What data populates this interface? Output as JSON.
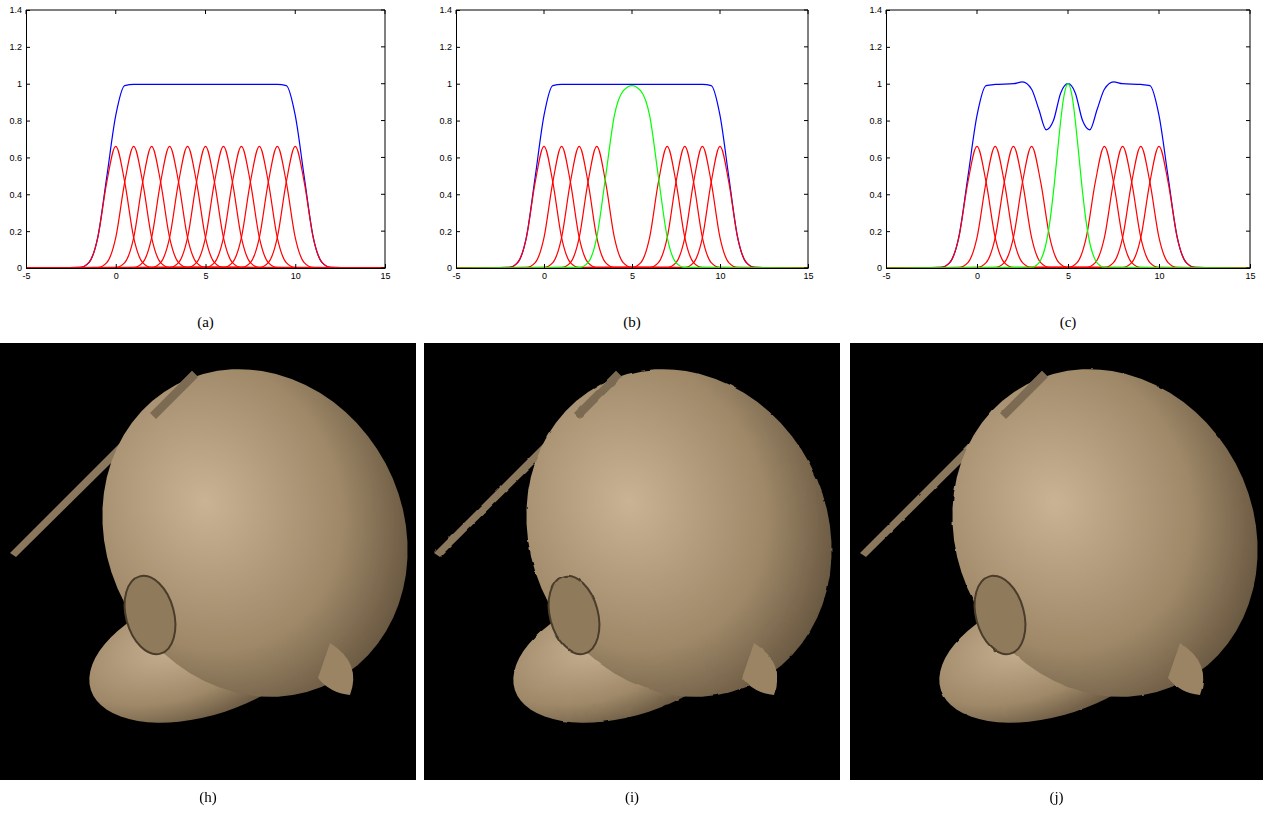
{
  "chart_data": [
    {
      "type": "line",
      "label": "(a)",
      "xlim": [
        -5,
        15
      ],
      "ylim": [
        0,
        1.4
      ],
      "xticks": [
        -5,
        0,
        5,
        10,
        15
      ],
      "yticks": [
        0,
        0.2,
        0.4,
        0.6,
        0.8,
        1,
        1.2,
        1.4
      ],
      "series": [
        {
          "color": "#0000ff",
          "x": [
            -5,
            -2,
            -1.5,
            -1,
            -0.5,
            0,
            0.5,
            1,
            9,
            9.5,
            10,
            10.5,
            11,
            11.5,
            12,
            15
          ],
          "values": [
            0,
            0.003,
            0.029,
            0.168,
            0.495,
            0.828,
            0.99,
            0.996,
            0.996,
            0.99,
            0.828,
            0.495,
            0.168,
            0.029,
            0.003,
            0
          ]
        },
        {
          "color": "#ff0000",
          "x": [
            -5,
            -2,
            -1.5,
            -1,
            -0.5,
            0,
            0.5,
            1,
            1.5,
            2,
            15
          ],
          "values": [
            0,
            0.003,
            0.029,
            0.165,
            0.466,
            0.66,
            0.466,
            0.165,
            0.029,
            0.003,
            0
          ]
        },
        {
          "color": "#ff0000",
          "x": [
            -5,
            -1,
            -0.5,
            0,
            0.5,
            1,
            1.5,
            2,
            2.5,
            3,
            15
          ],
          "values": [
            0,
            0.003,
            0.029,
            0.165,
            0.466,
            0.66,
            0.466,
            0.165,
            0.029,
            0.003,
            0
          ]
        },
        {
          "color": "#ff0000",
          "x": [
            -5,
            0,
            0.5,
            1,
            1.5,
            2,
            2.5,
            3,
            3.5,
            4,
            15
          ],
          "values": [
            0,
            0.003,
            0.029,
            0.165,
            0.466,
            0.66,
            0.466,
            0.165,
            0.029,
            0.003,
            0
          ]
        },
        {
          "color": "#ff0000",
          "x": [
            -5,
            1,
            1.5,
            2,
            2.5,
            3,
            3.5,
            4,
            4.5,
            5,
            15
          ],
          "values": [
            0,
            0.003,
            0.029,
            0.165,
            0.466,
            0.66,
            0.466,
            0.165,
            0.029,
            0.003,
            0
          ]
        },
        {
          "color": "#ff0000",
          "x": [
            -5,
            2,
            2.5,
            3,
            3.5,
            4,
            4.5,
            5,
            5.5,
            6,
            15
          ],
          "values": [
            0,
            0.003,
            0.029,
            0.165,
            0.466,
            0.66,
            0.466,
            0.165,
            0.029,
            0.003,
            0
          ]
        },
        {
          "color": "#ff0000",
          "x": [
            -5,
            3,
            3.5,
            4,
            4.5,
            5,
            5.5,
            6,
            6.5,
            7,
            15
          ],
          "values": [
            0,
            0.003,
            0.029,
            0.165,
            0.466,
            0.66,
            0.466,
            0.165,
            0.029,
            0.003,
            0
          ]
        },
        {
          "color": "#ff0000",
          "x": [
            -5,
            4,
            4.5,
            5,
            5.5,
            6,
            6.5,
            7,
            7.5,
            8,
            15
          ],
          "values": [
            0,
            0.003,
            0.029,
            0.165,
            0.466,
            0.66,
            0.466,
            0.165,
            0.029,
            0.003,
            0
          ]
        },
        {
          "color": "#ff0000",
          "x": [
            -5,
            5,
            5.5,
            6,
            6.5,
            7,
            7.5,
            8,
            8.5,
            9,
            15
          ],
          "values": [
            0,
            0.003,
            0.029,
            0.165,
            0.466,
            0.66,
            0.466,
            0.165,
            0.029,
            0.003,
            0
          ]
        },
        {
          "color": "#ff0000",
          "x": [
            -5,
            6,
            6.5,
            7,
            7.5,
            8,
            8.5,
            9,
            9.5,
            10,
            15
          ],
          "values": [
            0,
            0.003,
            0.029,
            0.165,
            0.466,
            0.66,
            0.466,
            0.165,
            0.029,
            0.003,
            0
          ]
        },
        {
          "color": "#ff0000",
          "x": [
            -5,
            7,
            7.5,
            8,
            8.5,
            9,
            9.5,
            10,
            10.5,
            11,
            15
          ],
          "values": [
            0,
            0.003,
            0.029,
            0.165,
            0.466,
            0.66,
            0.466,
            0.165,
            0.029,
            0.003,
            0
          ]
        },
        {
          "color": "#ff0000",
          "x": [
            -5,
            8,
            8.5,
            9,
            9.5,
            10,
            10.5,
            11,
            11.5,
            12,
            15
          ],
          "values": [
            0,
            0.003,
            0.029,
            0.165,
            0.466,
            0.66,
            0.466,
            0.165,
            0.029,
            0.003,
            0
          ]
        }
      ]
    },
    {
      "type": "line",
      "label": "(b)",
      "xlim": [
        -5,
        15
      ],
      "ylim": [
        0,
        1.4
      ],
      "xticks": [
        -5,
        0,
        5,
        10,
        15
      ],
      "yticks": [
        0,
        0.2,
        0.4,
        0.6,
        0.8,
        1,
        1.2,
        1.4
      ],
      "series": [
        {
          "color": "#0000ff",
          "x": [
            -5,
            -2,
            -1.5,
            -1,
            -0.5,
            0,
            0.5,
            1,
            9,
            9.5,
            10,
            10.5,
            11,
            11.5,
            12,
            15
          ],
          "values": [
            0,
            0.003,
            0.029,
            0.168,
            0.495,
            0.828,
            0.99,
            0.996,
            0.996,
            0.99,
            0.828,
            0.495,
            0.168,
            0.029,
            0.003,
            0
          ]
        },
        {
          "color": "#ff0000",
          "x": [
            -5,
            -2,
            -1.5,
            -1,
            -0.5,
            0,
            0.5,
            1,
            1.5,
            2,
            15
          ],
          "values": [
            0,
            0.003,
            0.029,
            0.165,
            0.466,
            0.66,
            0.466,
            0.165,
            0.029,
            0.003,
            0
          ]
        },
        {
          "color": "#ff0000",
          "x": [
            -5,
            -1,
            -0.5,
            0,
            0.5,
            1,
            1.5,
            2,
            2.5,
            3,
            15
          ],
          "values": [
            0,
            0.003,
            0.029,
            0.165,
            0.466,
            0.66,
            0.466,
            0.165,
            0.029,
            0.003,
            0
          ]
        },
        {
          "color": "#ff0000",
          "x": [
            -5,
            0,
            0.5,
            1,
            1.5,
            2,
            2.5,
            3,
            3.5,
            4,
            15
          ],
          "values": [
            0,
            0.003,
            0.029,
            0.165,
            0.466,
            0.66,
            0.466,
            0.165,
            0.029,
            0.003,
            0
          ]
        },
        {
          "color": "#ff0000",
          "x": [
            -5,
            1,
            1.5,
            2,
            2.5,
            3,
            3.5,
            4,
            4.5,
            5,
            15
          ],
          "values": [
            0,
            0.003,
            0.029,
            0.165,
            0.466,
            0.66,
            0.466,
            0.165,
            0.029,
            0.003,
            0
          ]
        },
        {
          "color": "#ff0000",
          "x": [
            -5,
            5,
            5.5,
            6,
            6.5,
            7,
            7.5,
            8,
            8.5,
            9,
            15
          ],
          "values": [
            0,
            0.003,
            0.029,
            0.165,
            0.466,
            0.66,
            0.466,
            0.165,
            0.029,
            0.003,
            0
          ]
        },
        {
          "color": "#ff0000",
          "x": [
            -5,
            6,
            6.5,
            7,
            7.5,
            8,
            8.5,
            9,
            9.5,
            10,
            15
          ],
          "values": [
            0,
            0.003,
            0.029,
            0.165,
            0.466,
            0.66,
            0.466,
            0.165,
            0.029,
            0.003,
            0
          ]
        },
        {
          "color": "#ff0000",
          "x": [
            -5,
            7,
            7.5,
            8,
            8.5,
            9,
            9.5,
            10,
            10.5,
            11,
            15
          ],
          "values": [
            0,
            0.003,
            0.029,
            0.165,
            0.466,
            0.66,
            0.466,
            0.165,
            0.029,
            0.003,
            0
          ]
        },
        {
          "color": "#ff0000",
          "x": [
            -5,
            8,
            8.5,
            9,
            9.5,
            10,
            10.5,
            11,
            11.5,
            12,
            15
          ],
          "values": [
            0,
            0.003,
            0.029,
            0.165,
            0.466,
            0.66,
            0.466,
            0.165,
            0.029,
            0.003,
            0
          ]
        },
        {
          "color": "#00ff00",
          "x": [
            -5,
            2,
            2.5,
            3,
            3.5,
            4,
            4.5,
            5,
            5.5,
            6,
            6.5,
            7,
            7.5,
            8,
            15
          ],
          "values": [
            0,
            0.003,
            0.029,
            0.168,
            0.495,
            0.828,
            0.961,
            0.99,
            0.961,
            0.828,
            0.495,
            0.168,
            0.029,
            0.003,
            0
          ]
        }
      ]
    },
    {
      "type": "line",
      "label": "(c)",
      "xlim": [
        -5,
        15
      ],
      "ylim": [
        0,
        1.4
      ],
      "xticks": [
        -5,
        0,
        5,
        10,
        15
      ],
      "yticks": [
        0,
        0.2,
        0.4,
        0.6,
        0.8,
        1,
        1.2,
        1.4
      ],
      "series": [
        {
          "color": "#0000ff",
          "x": [
            -5,
            -2,
            -1.5,
            -1,
            -0.5,
            0,
            0.5,
            1,
            2,
            2.5,
            3,
            3.4,
            3.8,
            4.2,
            4.6,
            5,
            5.4,
            5.8,
            6.2,
            6.6,
            7,
            7.5,
            8,
            9,
            9.5,
            10,
            10.5,
            11,
            11.5,
            12,
            15
          ],
          "values": [
            0,
            0.003,
            0.029,
            0.168,
            0.495,
            0.828,
            0.99,
            0.996,
            1.0,
            1.01,
            0.97,
            0.86,
            0.75,
            0.8,
            0.95,
            1.0,
            0.95,
            0.8,
            0.75,
            0.86,
            0.97,
            1.01,
            1.0,
            0.996,
            0.99,
            0.828,
            0.495,
            0.168,
            0.029,
            0.003,
            0
          ]
        },
        {
          "color": "#ff0000",
          "x": [
            -5,
            -2,
            -1.5,
            -1,
            -0.5,
            0,
            0.5,
            1,
            1.5,
            2,
            15
          ],
          "values": [
            0,
            0.003,
            0.029,
            0.165,
            0.466,
            0.66,
            0.466,
            0.165,
            0.029,
            0.003,
            0
          ]
        },
        {
          "color": "#ff0000",
          "x": [
            -5,
            -1,
            -0.5,
            0,
            0.5,
            1,
            1.5,
            2,
            2.5,
            3,
            15
          ],
          "values": [
            0,
            0.003,
            0.029,
            0.165,
            0.466,
            0.66,
            0.466,
            0.165,
            0.029,
            0.003,
            0
          ]
        },
        {
          "color": "#ff0000",
          "x": [
            -5,
            0,
            0.5,
            1,
            1.5,
            2,
            2.5,
            3,
            3.5,
            4,
            15
          ],
          "values": [
            0,
            0.003,
            0.029,
            0.165,
            0.466,
            0.66,
            0.466,
            0.165,
            0.029,
            0.003,
            0
          ]
        },
        {
          "color": "#ff0000",
          "x": [
            -5,
            1,
            1.5,
            2,
            2.5,
            3,
            3.5,
            4,
            4.5,
            5,
            15
          ],
          "values": [
            0,
            0.003,
            0.029,
            0.165,
            0.466,
            0.66,
            0.466,
            0.165,
            0.029,
            0.003,
            0
          ]
        },
        {
          "color": "#ff0000",
          "x": [
            -5,
            5,
            5.5,
            6,
            6.5,
            7,
            7.5,
            8,
            8.5,
            9,
            15
          ],
          "values": [
            0,
            0.003,
            0.029,
            0.165,
            0.466,
            0.66,
            0.466,
            0.165,
            0.029,
            0.003,
            0
          ]
        },
        {
          "color": "#ff0000",
          "x": [
            -5,
            6,
            6.5,
            7,
            7.5,
            8,
            8.5,
            9,
            9.5,
            10,
            15
          ],
          "values": [
            0,
            0.003,
            0.029,
            0.165,
            0.466,
            0.66,
            0.466,
            0.165,
            0.029,
            0.003,
            0
          ]
        },
        {
          "color": "#ff0000",
          "x": [
            -5,
            7,
            7.5,
            8,
            8.5,
            9,
            9.5,
            10,
            10.5,
            11,
            15
          ],
          "values": [
            0,
            0.003,
            0.029,
            0.165,
            0.466,
            0.66,
            0.466,
            0.165,
            0.029,
            0.003,
            0
          ]
        },
        {
          "color": "#ff0000",
          "x": [
            -5,
            8,
            8.5,
            9,
            9.5,
            10,
            10.5,
            11,
            11.5,
            12,
            15
          ],
          "values": [
            0,
            0.003,
            0.029,
            0.165,
            0.466,
            0.66,
            0.466,
            0.165,
            0.029,
            0.003,
            0
          ]
        },
        {
          "color": "#00ff00",
          "x": [
            -5,
            3,
            3.25,
            3.5,
            3.75,
            4,
            4.25,
            4.5,
            4.75,
            5,
            5.25,
            5.5,
            5.75,
            6,
            6.25,
            6.5,
            6.75,
            7,
            15
          ],
          "values": [
            0,
            0.004,
            0.014,
            0.044,
            0.114,
            0.249,
            0.458,
            0.707,
            0.917,
            1,
            0.917,
            0.707,
            0.458,
            0.249,
            0.114,
            0.044,
            0.014,
            0.004,
            0
          ]
        }
      ]
    }
  ],
  "images": [
    {
      "label": "(h)"
    },
    {
      "label": "(i)"
    },
    {
      "label": "(j)"
    }
  ]
}
